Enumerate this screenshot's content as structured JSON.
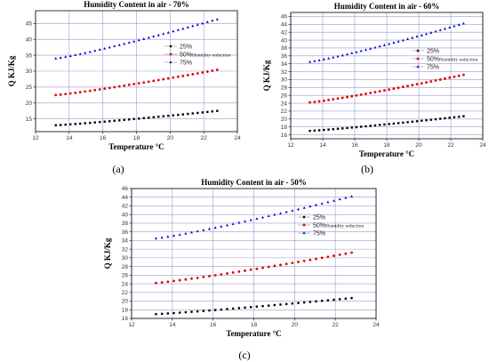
{
  "chart_data": [
    {
      "type": "scatter",
      "caption": "(a)",
      "title": "Humidity Content in air - 70%",
      "xlabel": "Temperature °C",
      "ylabel": "Q KJ/Kg",
      "xlim": [
        12,
        24
      ],
      "ylim": [
        11,
        49
      ],
      "xticks": [
        12,
        14,
        16,
        18,
        20,
        22,
        24
      ],
      "yticks": [
        15,
        20,
        25,
        30,
        35,
        40,
        45
      ],
      "grid": true,
      "legend_placement": "center-right",
      "annotation": "Humidity reduction",
      "series": [
        {
          "name": "25%",
          "marker": "square",
          "color": "#000000",
          "x": [
            13.2,
            22.8
          ],
          "y": [
            13.0,
            17.5
          ]
        },
        {
          "name": "50%",
          "marker": "circle",
          "color": "#e00000",
          "x": [
            13.2,
            22.8
          ],
          "y": [
            22.5,
            30.4
          ]
        },
        {
          "name": "75%",
          "marker": "triangle",
          "color": "#0000cc",
          "x": [
            13.2,
            22.8
          ],
          "y": [
            34.0,
            46.3
          ]
        }
      ]
    },
    {
      "type": "scatter",
      "caption": "(b)",
      "title": "Humidity Content in air - 60%",
      "xlabel": "Temperature °C",
      "ylabel": "Q KJ/Kg",
      "xlim": [
        12,
        24
      ],
      "ylim": [
        15,
        47
      ],
      "xticks": [
        12,
        14,
        16,
        18,
        20,
        22,
        24
      ],
      "yticks": [
        16,
        18,
        20,
        22,
        24,
        26,
        28,
        30,
        32,
        34,
        36,
        38,
        40,
        42,
        44,
        46
      ],
      "grid": true,
      "legend_placement": "top-right",
      "annotation": "Humidity reduction",
      "series": [
        {
          "name": "25%",
          "marker": "square",
          "color": "#000000",
          "x": [
            13.2,
            22.8
          ],
          "y": [
            17.0,
            20.7
          ]
        },
        {
          "name": "50%",
          "marker": "circle",
          "color": "#e00000",
          "x": [
            13.2,
            22.8
          ],
          "y": [
            24.2,
            31.2
          ]
        },
        {
          "name": "75%",
          "marker": "triangle",
          "color": "#0000cc",
          "x": [
            13.2,
            22.8
          ],
          "y": [
            34.5,
            44.2
          ]
        }
      ]
    },
    {
      "type": "scatter",
      "caption": "(c)",
      "title": "Humidity Content in air - 50%",
      "xlabel": "Temperature °C",
      "ylabel": "Q KJ/Kg",
      "xlim": [
        12,
        24
      ],
      "ylim": [
        16,
        46
      ],
      "xticks": [
        12,
        14,
        16,
        18,
        20,
        22,
        24
      ],
      "yticks": [
        16,
        18,
        20,
        22,
        24,
        26,
        28,
        30,
        32,
        34,
        36,
        38,
        40,
        42,
        44,
        46
      ],
      "grid": true,
      "legend_placement": "top-right",
      "annotation": "Humidity reduction",
      "series": [
        {
          "name": "25%",
          "marker": "square",
          "color": "#000000",
          "x": [
            13.2,
            22.8
          ],
          "y": [
            17.0,
            20.7
          ]
        },
        {
          "name": "50%",
          "marker": "circle",
          "color": "#e00000",
          "x": [
            13.2,
            22.8
          ],
          "y": [
            24.2,
            31.2
          ]
        },
        {
          "name": "75%",
          "marker": "triangle",
          "color": "#0000cc",
          "x": [
            13.2,
            22.8
          ],
          "y": [
            34.5,
            44.2
          ]
        }
      ]
    }
  ],
  "colors": {
    "grid": "#9a9ad8",
    "frame": "#000000"
  }
}
